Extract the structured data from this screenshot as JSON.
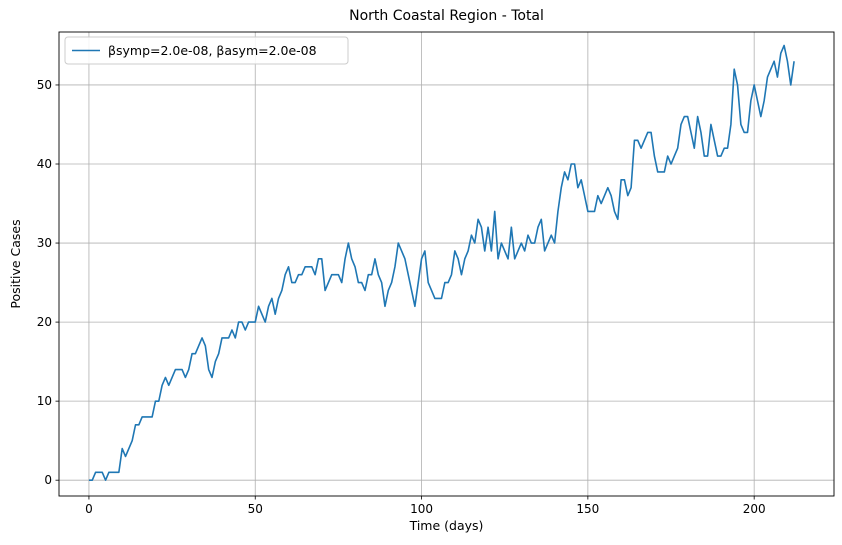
{
  "chart_data": {
    "type": "line",
    "title": "North Coastal Region - Total",
    "xlabel": "Time (days)",
    "ylabel": "Positive Cases",
    "xlim": [
      -9,
      224
    ],
    "ylim": [
      -2,
      56.7
    ],
    "xticks": [
      0,
      50,
      100,
      150,
      200
    ],
    "yticks": [
      0,
      10,
      20,
      30,
      40,
      50
    ],
    "grid": true,
    "legend_position": "top-left",
    "series": [
      {
        "name": "βsymp=2.0e-08, βasym=2.0e-08",
        "color": "#1f77b4",
        "x": [
          0,
          1,
          2,
          3,
          4,
          5,
          6,
          7,
          8,
          9,
          10,
          11,
          12,
          13,
          14,
          15,
          16,
          17,
          18,
          19,
          20,
          21,
          22,
          23,
          24,
          25,
          26,
          27,
          28,
          29,
          30,
          31,
          32,
          33,
          34,
          35,
          36,
          37,
          38,
          39,
          40,
          41,
          42,
          43,
          44,
          45,
          46,
          47,
          48,
          49,
          50,
          51,
          52,
          53,
          54,
          55,
          56,
          57,
          58,
          59,
          60,
          61,
          62,
          63,
          64,
          65,
          66,
          67,
          68,
          69,
          70,
          71,
          72,
          73,
          74,
          75,
          76,
          77,
          78,
          79,
          80,
          81,
          82,
          83,
          84,
          85,
          86,
          87,
          88,
          89,
          90,
          91,
          92,
          93,
          94,
          95,
          96,
          97,
          98,
          99,
          100,
          101,
          102,
          103,
          104,
          105,
          106,
          107,
          108,
          109,
          110,
          111,
          112,
          113,
          114,
          115,
          116,
          117,
          118,
          119,
          120,
          121,
          122,
          123,
          124,
          125,
          126,
          127,
          128,
          129,
          130,
          131,
          132,
          133,
          134,
          135,
          136,
          137,
          138,
          139,
          140,
          141,
          142,
          143,
          144,
          145,
          146,
          147,
          148,
          149,
          150,
          151,
          152,
          153,
          154,
          155,
          156,
          157,
          158,
          159,
          160,
          161,
          162,
          163,
          164,
          165,
          166,
          167,
          168,
          169,
          170,
          171,
          172,
          173,
          174,
          175,
          176,
          177,
          178,
          179,
          180,
          181,
          182,
          183,
          184,
          185,
          186,
          187,
          188,
          189,
          190,
          191,
          192,
          193,
          194,
          195,
          196,
          197,
          198,
          199,
          200,
          201,
          202,
          203,
          204,
          205,
          206,
          207,
          208,
          209,
          210,
          211,
          212
        ],
        "y": [
          0,
          0,
          1,
          1,
          1,
          0,
          1,
          1,
          1,
          1,
          4,
          3,
          4,
          5,
          7,
          7,
          8,
          8,
          8,
          8,
          10,
          10,
          12,
          13,
          12,
          13,
          14,
          14,
          14,
          13,
          14,
          16,
          16,
          17,
          18,
          17,
          14,
          13,
          15,
          16,
          18,
          18,
          18,
          19,
          18,
          20,
          20,
          19,
          20,
          20,
          20,
          22,
          21,
          20,
          22,
          23,
          21,
          23,
          24,
          26,
          27,
          25,
          25,
          26,
          26,
          27,
          27,
          27,
          26,
          28,
          28,
          24,
          25,
          26,
          26,
          26,
          25,
          28,
          30,
          28,
          27,
          25,
          25,
          24,
          26,
          26,
          28,
          26,
          25,
          22,
          24,
          25,
          27,
          30,
          29,
          28,
          26,
          24,
          22,
          25,
          28,
          29,
          25,
          24,
          23,
          23,
          23,
          25,
          25,
          26,
          29,
          28,
          26,
          28,
          29,
          31,
          30,
          33,
          32,
          29,
          32,
          29,
          34,
          28,
          30,
          29,
          28,
          32,
          28,
          29,
          30,
          29,
          31,
          30,
          30,
          32,
          33,
          29,
          30,
          31,
          30,
          34,
          37,
          39,
          38,
          40,
          40,
          37,
          38,
          36,
          34,
          34,
          34,
          36,
          35,
          36,
          37,
          36,
          34,
          33,
          38,
          38,
          36,
          37,
          43,
          43,
          42,
          43,
          44,
          44,
          41,
          39,
          39,
          39,
          41,
          40,
          41,
          42,
          45,
          46,
          46,
          44,
          42,
          46,
          44,
          41,
          41,
          45,
          43,
          41,
          41,
          42,
          42,
          45,
          52,
          50,
          45,
          44,
          44,
          48,
          50,
          48,
          46,
          48,
          51,
          52,
          53,
          51,
          54,
          55,
          53,
          50,
          53
        ]
      }
    ]
  }
}
